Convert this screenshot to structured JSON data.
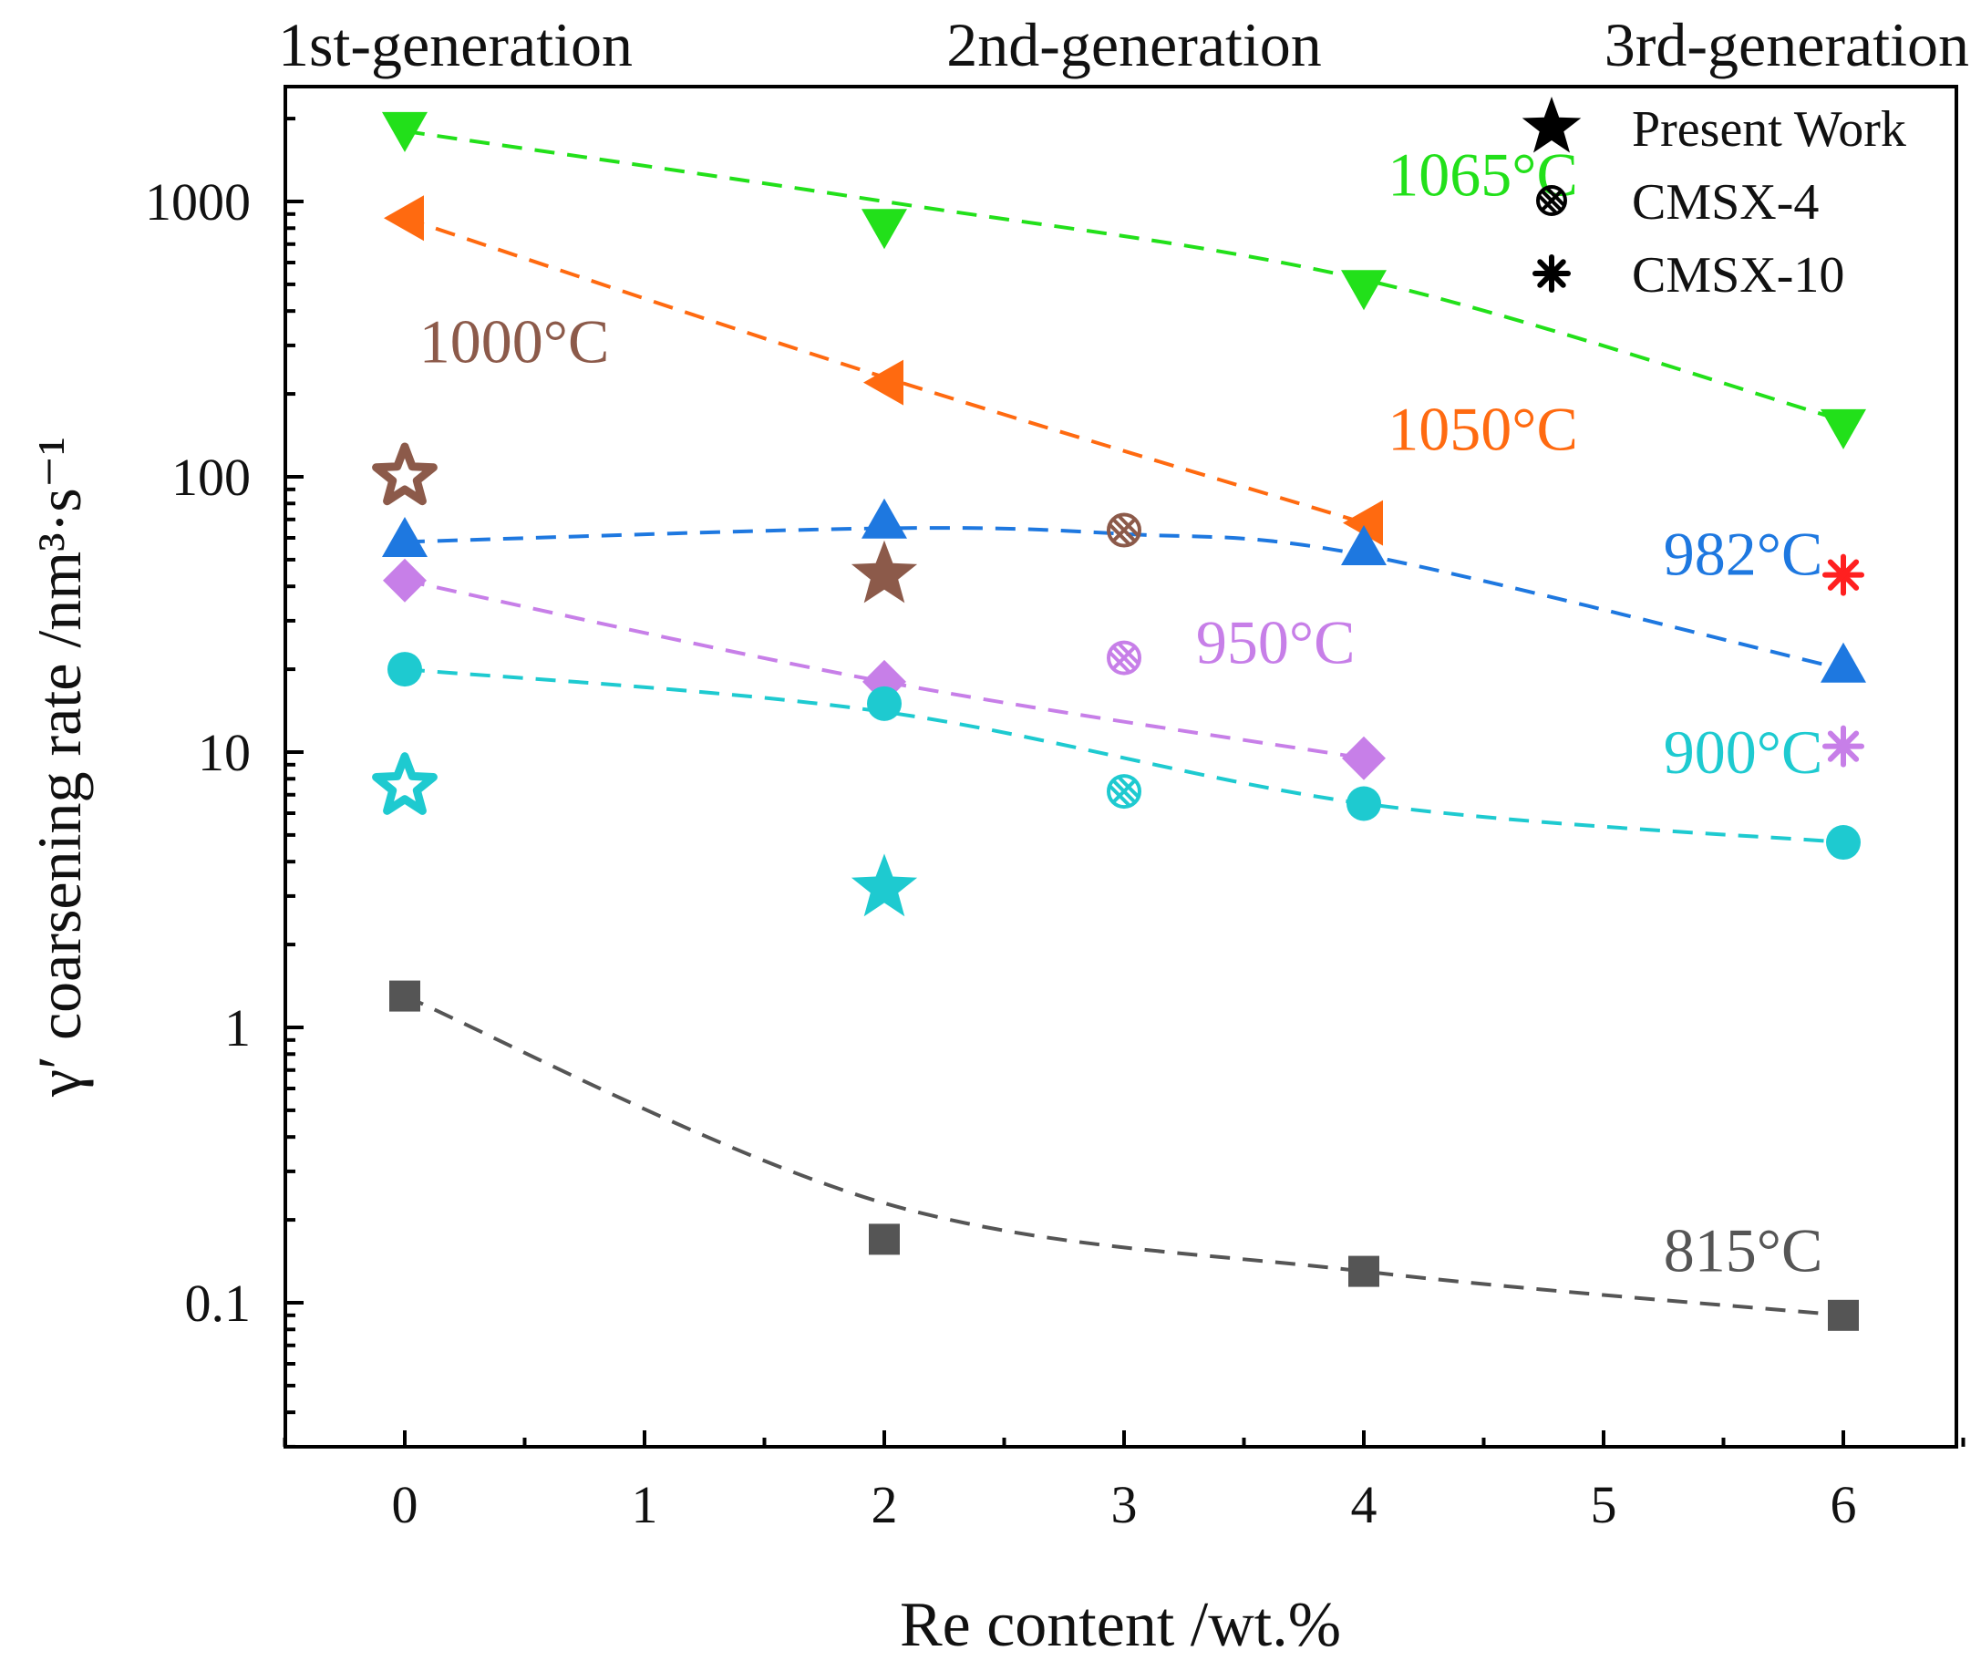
{
  "chart_data": {
    "type": "scatter",
    "title": "",
    "xlabel": "Re content /wt.%",
    "ylabel": "γ′ coarsening rate /nm³·s⁻¹",
    "xlim": [
      -0.5,
      6.5
    ],
    "ylim": [
      0.03,
      2500
    ],
    "yscale": "log",
    "x_ticks": [
      0,
      1,
      2,
      3,
      4,
      5,
      6
    ],
    "x_tick_labels": [
      "0",
      "1",
      "2",
      "3",
      "4",
      "5",
      "6"
    ],
    "y_ticks": [
      0.1,
      1,
      10,
      100,
      1000
    ],
    "y_tick_labels": [
      "0.1",
      "1",
      "10",
      "100",
      "1000"
    ],
    "generation_labels": [
      {
        "text": "1st-generation",
        "x": 0
      },
      {
        "text": "2nd-generation",
        "x": 2
      },
      {
        "text": "3rd-generation",
        "x": 6
      }
    ],
    "legend": {
      "position": "top-right",
      "entries": [
        {
          "marker": "star",
          "label": "Present Work"
        },
        {
          "marker": "cross-circle",
          "label": "CMSX-4"
        },
        {
          "marker": "asterisk",
          "label": "CMSX-10"
        }
      ]
    },
    "series": [
      {
        "name": "1065°C",
        "label": "1065°C",
        "color": "#22e01a",
        "marker": "triangle-down",
        "x": [
          0,
          2,
          4,
          6
        ],
        "y": [
          1800,
          800,
          480,
          150
        ],
        "fit": {
          "x": [
            0,
            2,
            4,
            6
          ],
          "y": [
            1800,
            1000,
            520,
            160
          ]
        },
        "label_at": [
          4.1,
          1050
        ]
      },
      {
        "name": "1050°C",
        "label": "1050°C",
        "color": "#ff6a10",
        "marker": "triangle-left",
        "x": [
          0,
          2,
          4
        ],
        "y": [
          870,
          220,
          68
        ],
        "fit": {
          "x": [
            0,
            2,
            4
          ],
          "y": [
            870,
            230,
            68
          ]
        },
        "label_at": [
          4.1,
          125
        ]
      },
      {
        "name": "1000°C",
        "label": "1000°C",
        "color": "#8c5a4a",
        "marker": "none",
        "x": [],
        "y": [],
        "fit": null,
        "label_at": [
          0.06,
          260
        ]
      },
      {
        "name": "982°C",
        "label": "982°C",
        "color": "#1e78e0",
        "marker": "triangle-up",
        "x": [
          0,
          2,
          4,
          6
        ],
        "y": [
          60,
          70,
          56,
          21
        ],
        "fit": {
          "x": [
            0,
            2,
            3,
            4,
            6
          ],
          "y": [
            58,
            65,
            62,
            52,
            20
          ]
        },
        "label_at": [
          5.25,
          44
        ]
      },
      {
        "name": "950°C",
        "label": "950°C",
        "color": "#c77fe8",
        "marker": "diamond",
        "x": [
          0,
          2,
          4
        ],
        "y": [
          42,
          18,
          9.5
        ],
        "fit": {
          "x": [
            0,
            2,
            4
          ],
          "y": [
            42,
            18,
            9.5
          ]
        },
        "label_at": [
          3.3,
          21
        ]
      },
      {
        "name": "900°C",
        "label": "900°C",
        "color": "#1ecad0",
        "marker": "circle",
        "x": [
          0,
          2,
          4,
          6
        ],
        "y": [
          20,
          15,
          6.5,
          4.7
        ],
        "fit": {
          "x": [
            0,
            2,
            4,
            6
          ],
          "y": [
            20,
            14,
            6.5,
            4.7
          ]
        },
        "label_at": [
          5.25,
          8.4
        ]
      },
      {
        "name": "815°C",
        "label": "815°C",
        "color": "#555555",
        "marker": "square",
        "x": [
          0,
          2,
          4,
          6
        ],
        "y": [
          1.3,
          0.17,
          0.13,
          0.09
        ],
        "fit": {
          "x": [
            0,
            2,
            4,
            6
          ],
          "y": [
            1.3,
            0.23,
            0.13,
            0.09
          ]
        },
        "label_at": [
          5.25,
          0.13
        ]
      }
    ],
    "present_work": [
      {
        "x": 0,
        "y": 100,
        "color": "#8c5a4a",
        "style": "hollow",
        "temperature": "1000°C"
      },
      {
        "x": 2,
        "y": 44,
        "color": "#8c5a4a",
        "style": "filled",
        "temperature": "1000°C"
      },
      {
        "x": 0,
        "y": 7.5,
        "color": "#1ecad0",
        "style": "hollow",
        "temperature": "900°C"
      },
      {
        "x": 2,
        "y": 3.2,
        "color": "#1ecad0",
        "style": "filled",
        "temperature": "900°C"
      }
    ],
    "cmsx4": [
      {
        "x": 3,
        "y": 64,
        "color": "#8c5a4a"
      },
      {
        "x": 3,
        "y": 22,
        "color": "#c77fe8"
      },
      {
        "x": 3,
        "y": 7.2,
        "color": "#1ecad0"
      }
    ],
    "cmsx10": [
      {
        "x": 6,
        "y": 44,
        "color": "#ff2020"
      },
      {
        "x": 6,
        "y": 10.5,
        "color": "#c77fe8"
      }
    ]
  }
}
